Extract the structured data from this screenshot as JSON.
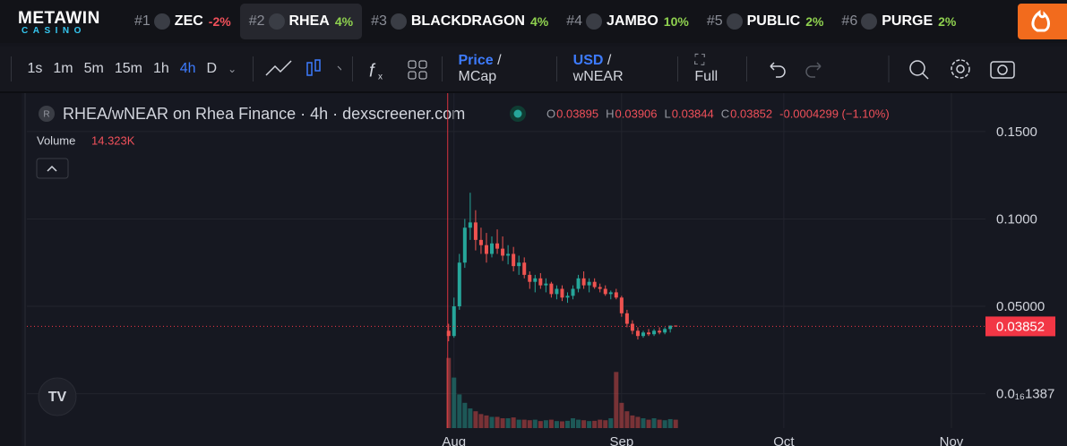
{
  "brand": {
    "name": "METAWIN",
    "sub": "CASINO"
  },
  "tickers": [
    {
      "rank": "#1",
      "symbol": "ZEC",
      "change": "-2%"
    },
    {
      "rank": "#2",
      "symbol": "RHEA",
      "change": "4%",
      "selected": true
    },
    {
      "rank": "#3",
      "symbol": "BLACKDRAGON",
      "change": "4%"
    },
    {
      "rank": "#4",
      "symbol": "JAMBO",
      "change": "10%"
    },
    {
      "rank": "#5",
      "symbol": "PUBLIC",
      "change": "2%"
    },
    {
      "rank": "#6",
      "symbol": "PURGE",
      "change": "2%"
    }
  ],
  "toolbar": {
    "intervals": [
      "1s",
      "1m",
      "5m",
      "15m",
      "1h",
      "4h",
      "D"
    ],
    "selected_interval": "4h",
    "price_toggle": [
      "Price",
      "MCap"
    ],
    "currency_toggle": [
      "USD",
      "wNEAR"
    ],
    "full": "Full"
  },
  "chart_data": {
    "type": "candlestick",
    "title": "RHEA/wNEAR on Rhea Finance · 4h · dexscreener.com",
    "ohlc_header": [
      {
        "key": "O",
        "value": "0.03895"
      },
      {
        "key": "H",
        "value": "0.03906"
      },
      {
        "key": "L",
        "value": "0.03844"
      },
      {
        "key": "C",
        "value": "0.03852"
      }
    ],
    "change_text": "-0.0004299 (−1.10%)",
    "volume_title": "Volume",
    "volume_text": "14.323K",
    "up_color": "#26a69a",
    "down_color": "#ef5350",
    "last_price": 0.03852,
    "ylim": [
      -0.0197,
      0.172
    ],
    "yticks": [
      {
        "value": 1.387e-17,
        "label": "0.0₁₆1387"
      },
      {
        "value": 0.05,
        "label": "0.05000"
      },
      {
        "value": 0.1,
        "label": "0.1000"
      },
      {
        "value": 0.15,
        "label": "0.1500"
      }
    ],
    "xlim": [
      -79,
      98.3
    ],
    "xticks": [
      {
        "value": 0,
        "label": "Aug"
      },
      {
        "value": 31,
        "label": "Sep"
      },
      {
        "value": 61,
        "label": "Oct"
      },
      {
        "value": 92,
        "label": "Nov"
      }
    ],
    "vlim": [
      0,
      300
    ],
    "grid": true,
    "x": [
      -1,
      0,
      1,
      2,
      3,
      4,
      5,
      6,
      7,
      8,
      9,
      10,
      11,
      12,
      13,
      14,
      15,
      16,
      17,
      18,
      19,
      20,
      21,
      22,
      23,
      24,
      25,
      26,
      27,
      28,
      29,
      30,
      31,
      32,
      33,
      34,
      35,
      36,
      37,
      38,
      39,
      40,
      41
    ],
    "open": [
      0.036,
      0.033,
      0.05,
      0.075,
      0.095,
      0.098,
      0.088,
      0.085,
      0.08,
      0.086,
      0.083,
      0.079,
      0.08,
      0.073,
      0.075,
      0.068,
      0.064,
      0.066,
      0.062,
      0.063,
      0.057,
      0.06,
      0.055,
      0.056,
      0.06,
      0.066,
      0.062,
      0.064,
      0.061,
      0.06,
      0.057,
      0.058,
      0.055,
      0.046,
      0.04,
      0.036,
      0.033,
      0.035,
      0.034,
      0.036,
      0.035,
      0.037,
      0.03895
    ],
    "high": [
      0.04,
      0.055,
      0.08,
      0.1,
      0.115,
      0.105,
      0.095,
      0.092,
      0.09,
      0.094,
      0.09,
      0.085,
      0.084,
      0.079,
      0.078,
      0.07,
      0.068,
      0.069,
      0.066,
      0.064,
      0.062,
      0.062,
      0.058,
      0.062,
      0.068,
      0.07,
      0.066,
      0.066,
      0.063,
      0.062,
      0.059,
      0.06,
      0.056,
      0.048,
      0.042,
      0.038,
      0.036,
      0.037,
      0.037,
      0.038,
      0.038,
      0.039,
      0.03906
    ],
    "low": [
      0.03,
      0.032,
      0.048,
      0.072,
      0.088,
      0.082,
      0.08,
      0.075,
      0.078,
      0.08,
      0.076,
      0.074,
      0.07,
      0.068,
      0.066,
      0.06,
      0.058,
      0.06,
      0.058,
      0.055,
      0.054,
      0.053,
      0.052,
      0.054,
      0.058,
      0.06,
      0.058,
      0.06,
      0.058,
      0.056,
      0.054,
      0.054,
      0.044,
      0.038,
      0.034,
      0.031,
      0.032,
      0.033,
      0.033,
      0.034,
      0.034,
      0.035,
      0.03844
    ],
    "close": [
      0.033,
      0.05,
      0.075,
      0.095,
      0.098,
      0.088,
      0.085,
      0.08,
      0.086,
      0.083,
      0.079,
      0.08,
      0.073,
      0.075,
      0.068,
      0.064,
      0.066,
      0.062,
      0.063,
      0.057,
      0.06,
      0.055,
      0.056,
      0.06,
      0.066,
      0.062,
      0.064,
      0.061,
      0.06,
      0.057,
      0.058,
      0.055,
      0.046,
      0.04,
      0.036,
      0.033,
      0.035,
      0.034,
      0.036,
      0.035,
      0.037,
      0.03895,
      0.03852
    ],
    "volume": [
      250,
      180,
      120,
      90,
      70,
      60,
      50,
      45,
      40,
      40,
      35,
      35,
      38,
      30,
      30,
      28,
      30,
      25,
      28,
      30,
      25,
      24,
      26,
      35,
      30,
      28,
      25,
      26,
      30,
      28,
      35,
      200,
      90,
      60,
      45,
      40,
      35,
      30,
      35,
      30,
      28,
      32,
      30
    ]
  }
}
